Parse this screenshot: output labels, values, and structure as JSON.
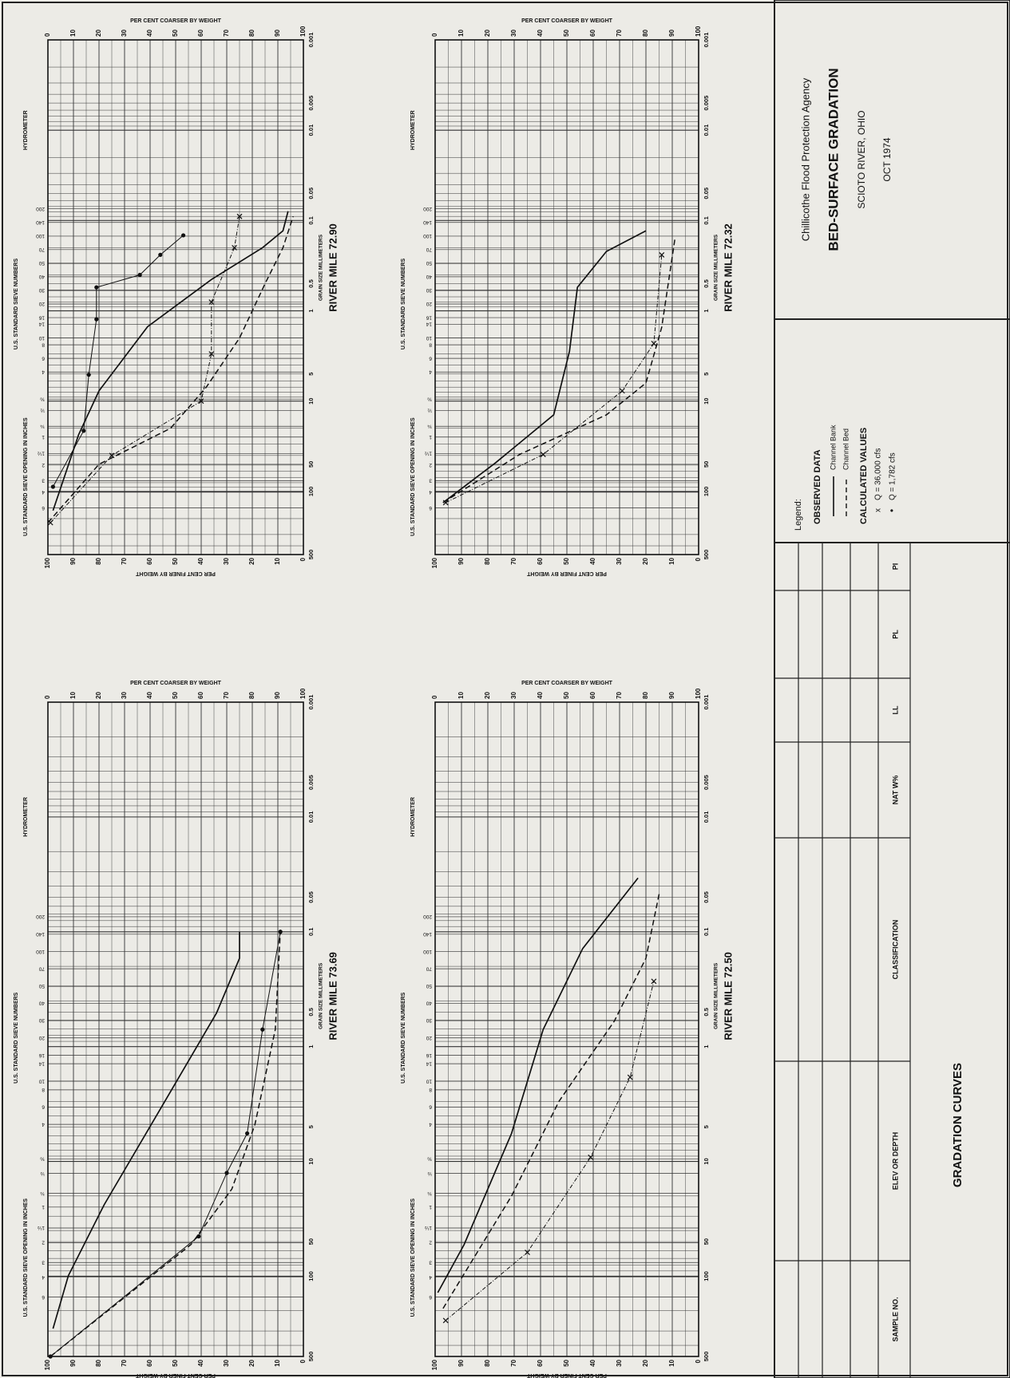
{
  "title_block": {
    "agency": "Chillicothe Flood Protection Agency",
    "title": "BED-SURFACE GRADATION",
    "location": "SCIOTO RIVER, OHIO",
    "date": "OCT 1974"
  },
  "legend": {
    "heading": "Legend:",
    "observed": "OBSERVED DATA",
    "bank": "Channel Bank",
    "bed": "Channel Bed",
    "calculated": "CALCULATED VALUES",
    "q1": {
      "marker": "x",
      "label": "Q = 36,000 cfs"
    },
    "q2": {
      "marker": "•",
      "label": "Q = 1,782 cfs"
    }
  },
  "axes": {
    "finer": "PER CENT FINER BY WEIGHT",
    "coarser": "PER CENT COARSER BY WEIGHT",
    "inches": "U.S. STANDARD SIEVE OPENING IN INCHES",
    "sieve": "U.S. STANDARD SIEVE NUMBERS",
    "hydrometer": "HYDROMETER",
    "grain": "GRAIN SIZE MILLIMETERS",
    "percent_ticks": [
      0,
      10,
      20,
      30,
      40,
      50,
      60,
      70,
      80,
      90,
      100
    ],
    "grain_ticks": [
      500,
      100,
      50,
      10,
      5,
      1,
      0.5,
      0.1,
      0.05,
      0.01,
      0.005,
      0.001
    ],
    "inch_ticks": [
      {
        "value": 152,
        "label": "6"
      },
      {
        "value": 102,
        "label": "4"
      },
      {
        "value": 76,
        "label": "3"
      },
      {
        "value": 51,
        "label": "2"
      },
      {
        "value": 38,
        "label": "1½"
      },
      {
        "value": 25,
        "label": "1"
      },
      {
        "value": 19,
        "label": "¾"
      },
      {
        "value": 12.7,
        "label": "½"
      },
      {
        "value": 9.5,
        "label": "⅜"
      }
    ],
    "sieve_ticks": [
      {
        "value": 4.76,
        "label": "4"
      },
      {
        "value": 3.36,
        "label": "6"
      },
      {
        "value": 2.38,
        "label": "8"
      },
      {
        "value": 2.0,
        "label": "10"
      },
      {
        "value": 1.41,
        "label": "14"
      },
      {
        "value": 1.19,
        "label": "16"
      },
      {
        "value": 0.84,
        "label": "20"
      },
      {
        "value": 0.59,
        "label": "30"
      },
      {
        "value": 0.42,
        "label": "40"
      },
      {
        "value": 0.297,
        "label": "50"
      },
      {
        "value": 0.21,
        "label": "70"
      },
      {
        "value": 0.149,
        "label": "100"
      },
      {
        "value": 0.105,
        "label": "140"
      },
      {
        "value": 0.074,
        "label": "200"
      }
    ]
  },
  "panels": [
    {
      "label": "RIVER MILE 72.90",
      "curves": [
        {
          "style": "bank",
          "mm": [
            163,
            23.6,
            7.7,
            1.5,
            0.45,
            0.2,
            0.13,
            0.079
          ],
          "pct": [
            98,
            88,
            80,
            61,
            36,
            16,
            8,
            6
          ]
        },
        {
          "style": "bed",
          "mm": [
            222,
            50,
            20,
            7,
            2,
            0.5,
            0.2,
            0.09
          ],
          "pct": [
            100,
            80,
            52,
            38,
            25,
            15,
            8,
            4
          ]
        },
        {
          "style": "q1",
          "mm": [
            222,
            40,
            10,
            3,
            0.8,
            0.2,
            0.09
          ],
          "pct": [
            99,
            75,
            40,
            36,
            36,
            27,
            25
          ]
        },
        {
          "style": "q2",
          "mm": [
            88.7,
            21.3,
            5.1,
            1.24,
            0.55,
            0.4,
            0.24,
            0.146
          ],
          "pct": [
            98,
            86,
            84,
            81,
            81,
            64,
            56,
            47
          ]
        }
      ]
    },
    {
      "label": "RIVER MILE 72.32",
      "curves": [
        {
          "style": "bank",
          "mm": [
            133,
            48,
            14.2,
            2.8,
            0.55,
            0.22,
            0.13
          ],
          "pct": [
            97,
            77,
            55,
            49,
            46,
            35,
            20
          ]
        },
        {
          "style": "bed",
          "mm": [
            133,
            39,
            14.2,
            6.3,
            1.52,
            0.16
          ],
          "pct": [
            97,
            68,
            35,
            20,
            14,
            9
          ]
        },
        {
          "style": "q1",
          "mm": [
            133,
            39,
            7.7,
            2.3,
            0.24
          ],
          "pct": [
            96,
            59,
            29,
            17,
            14
          ]
        }
      ]
    },
    {
      "label": "RIVER MILE 73.69",
      "curves": [
        {
          "style": "bank",
          "mm": [
            286,
            99,
            23.9,
            3.5,
            0.51,
            0.17,
            0.1
          ],
          "pct": [
            98,
            92,
            78,
            56,
            34,
            25,
            25
          ]
        },
        {
          "style": "bed",
          "mm": [
            500,
            53,
            17.4,
            4.8,
            0.71,
            0.096
          ],
          "pct": [
            99,
            44,
            28,
            19,
            11,
            9
          ]
        },
        {
          "style": "q2",
          "mm": [
            500,
            45,
            12.6,
            5.7,
            0.71,
            0.1
          ],
          "pct": [
            99,
            41,
            30,
            22,
            16,
            9
          ]
        }
      ]
    },
    {
      "label": "RIVER MILE 72.50",
      "curves": [
        {
          "style": "bank",
          "mm": [
            139,
            53,
            5.7,
            0.71,
            0.14,
            0.034
          ],
          "pct": [
            99,
            89,
            71,
            59,
            44,
            23
          ]
        },
        {
          "style": "bed",
          "mm": [
            191,
            20,
            3.0,
            0.6,
            0.17,
            0.047
          ],
          "pct": [
            97,
            71,
            53,
            32,
            20,
            15
          ]
        },
        {
          "style": "q1",
          "mm": [
            243,
            62,
            9.2,
            1.85,
            0.27
          ],
          "pct": [
            96,
            65,
            41,
            26,
            17
          ]
        }
      ]
    }
  ],
  "table": {
    "headers": [
      "SAMPLE NO.",
      "ELEV OR DEPTH",
      "CLASSIFICATION",
      "NAT W%",
      "LL",
      "PL",
      "PI"
    ]
  },
  "footer": "GRADATION CURVES"
}
